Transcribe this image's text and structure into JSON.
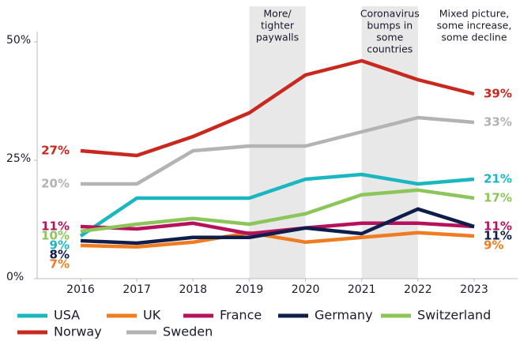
{
  "chart_data": {
    "type": "line",
    "categories": [
      "2016",
      "2017",
      "2018",
      "2019",
      "2020",
      "2021",
      "2022",
      "2023"
    ],
    "ylim": [
      0,
      50
    ],
    "yticks": [
      {
        "value": 0,
        "label": "0%"
      },
      {
        "value": 25,
        "label": "25%"
      },
      {
        "value": 50,
        "label": "50%"
      }
    ],
    "grid": false,
    "bands": [
      {
        "from": "2019",
        "to": "2020",
        "lines": [
          "More/",
          "tighter",
          "paywalls"
        ]
      },
      {
        "from": "2021",
        "to": "2022",
        "lines": [
          "Coronavirus",
          "bumps in",
          "some",
          "countries"
        ]
      }
    ],
    "annotations": [
      {
        "at": "2023",
        "lines": [
          "Mixed picture,",
          "some increase,",
          "some decline"
        ]
      }
    ],
    "series": [
      {
        "name": "USA",
        "color": "#1ab7c1",
        "values": [
          9,
          17,
          17,
          17,
          21,
          22,
          20,
          21
        ],
        "value_labels": [
          "9%",
          null,
          null,
          null,
          null,
          null,
          null,
          "21%"
        ]
      },
      {
        "name": "UK",
        "color": "#f07c22",
        "values": [
          7,
          6.7,
          7.7,
          9.7,
          7.7,
          8.7,
          9.7,
          9
        ],
        "value_labels": [
          "7%",
          null,
          null,
          null,
          null,
          null,
          null,
          "9%"
        ]
      },
      {
        "name": "France",
        "color": "#b5125b",
        "values": [
          11,
          10.5,
          11.7,
          9.5,
          10.7,
          11.7,
          11.7,
          11
        ],
        "value_labels": [
          "11%",
          null,
          null,
          null,
          null,
          null,
          null,
          "11%"
        ]
      },
      {
        "name": "Germany",
        "color": "#0f1d4a",
        "values": [
          8,
          7.5,
          8.7,
          8.7,
          10.7,
          9.5,
          14.7,
          11
        ],
        "value_labels": [
          "8%",
          null,
          null,
          null,
          null,
          null,
          null,
          "11%"
        ]
      },
      {
        "name": "Switzerland",
        "color": "#8cc65a",
        "values": [
          10,
          11.5,
          12.7,
          11.5,
          13.7,
          17.7,
          18.7,
          17
        ],
        "value_labels": [
          "10%",
          null,
          null,
          null,
          null,
          null,
          null,
          "17%"
        ]
      },
      {
        "name": "Norway",
        "color": "#c8281e",
        "values": [
          27,
          26,
          30,
          35,
          43,
          46,
          42,
          39
        ],
        "value_labels": [
          "27%",
          null,
          null,
          null,
          null,
          null,
          null,
          "39%"
        ]
      },
      {
        "name": "Sweden",
        "color": "#b3b3b3",
        "values": [
          20,
          20,
          27,
          28,
          28,
          31,
          34,
          33
        ],
        "value_labels": [
          "20%",
          null,
          null,
          null,
          null,
          null,
          null,
          "33%"
        ]
      }
    ]
  }
}
